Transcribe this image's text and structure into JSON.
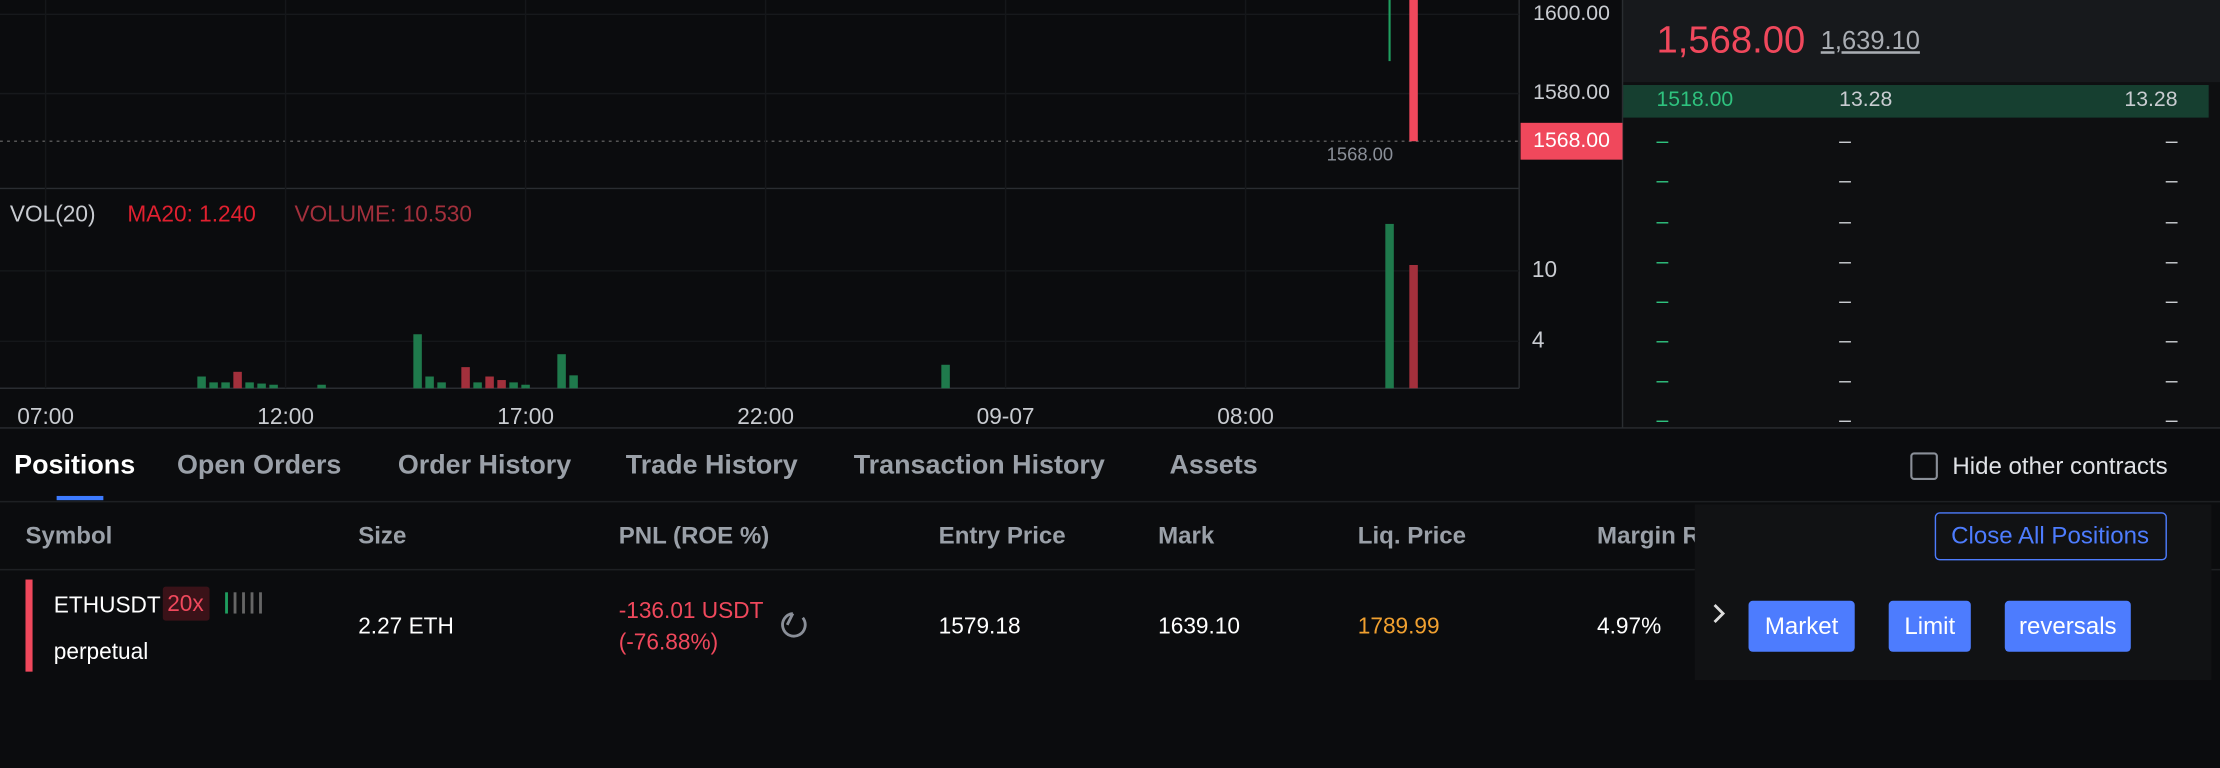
{
  "chart_data": [
    {
      "type": "candlestick",
      "x": [
        28,
        28.5
      ],
      "candles": [
        {
          "color": "#1f9e5f",
          "low": 1588.2
        },
        {
          "color": "#f0485c",
          "close": 1568
        }
      ],
      "xlim": [
        -0.95,
        30.7
      ],
      "ylim": [
        1556.1,
        1603.6
      ],
      "yticks": [
        {
          "value": 1580,
          "label": "1580.00"
        },
        {
          "value": 1600,
          "label": "1600.00"
        }
      ],
      "last_price": {
        "value": 1568,
        "label": "1568.00"
      },
      "low_marker": {
        "value": 1568,
        "label": "1568.00"
      }
    },
    {
      "type": "bar",
      "title": "VOL(20)",
      "annotations": [
        "MA20: 1.240",
        "VOLUME: 10.530"
      ],
      "series": [
        {
          "color": "#1f7a4c",
          "x": [
            3.25,
            3.5,
            3.75,
            4.25,
            4.5,
            4.75,
            5.75,
            7.75,
            8,
            8.25,
            9,
            9.75,
            10,
            10.75,
            11,
            18.75,
            28
          ],
          "values": [
            1.0,
            0.5,
            0.5,
            0.5,
            0.4,
            0.3,
            0.3,
            4.6,
            1.0,
            0.5,
            0.5,
            0.5,
            0.3,
            2.9,
            1.1,
            2.0,
            14
          ]
        },
        {
          "color": "#a3303c",
          "x": [
            4,
            8.75,
            9.25,
            9.5,
            28.5
          ],
          "values": [
            1.4,
            1.8,
            1.0,
            0.7,
            10.5
          ]
        }
      ],
      "xlim": [
        -0.95,
        30.7
      ],
      "xticks": [
        {
          "value": 0,
          "label": "07:00"
        },
        {
          "value": 5,
          "label": "12:00"
        },
        {
          "value": 10,
          "label": "17:00"
        },
        {
          "value": 15,
          "label": "22:00"
        },
        {
          "value": 20,
          "label": "09-07"
        },
        {
          "value": 25,
          "label": "08:00"
        }
      ],
      "ylim": [
        0,
        16.9
      ],
      "yticks": [
        4,
        10
      ]
    }
  ],
  "order_book": {
    "last_price": "1,568.00",
    "mark_price": "1,639.10",
    "rows": [
      [
        "1518.00",
        "13.28",
        "13.28"
      ],
      [
        "–",
        "–",
        "–"
      ],
      [
        "–",
        "–",
        "–"
      ],
      [
        "–",
        "–",
        "–"
      ],
      [
        "–",
        "–",
        "–"
      ],
      [
        "–",
        "–",
        "–"
      ],
      [
        "–",
        "–",
        "–"
      ],
      [
        "–",
        "–",
        "–"
      ],
      [
        "–",
        "–",
        "–"
      ]
    ]
  },
  "tabs": [
    "Positions",
    "Open Orders",
    "Order History",
    "Trade History",
    "Transaction History",
    "Assets"
  ],
  "hide_other": "Hide other contracts",
  "close_all": "Close All Positions",
  "table": {
    "headers": [
      "Symbol",
      "Size",
      "PNL (ROE %)",
      "Entry Price",
      "Mark",
      "Liq. Price",
      "Margin Ratio"
    ],
    "row": {
      "symbol": "ETHUSDT",
      "leverage": "20x",
      "kind": "perpetual",
      "size": "2.27 ETH",
      "pnl": "-136.01 USDT",
      "roe": "(-76.88%)",
      "entry": "1579.18",
      "mark": "1639.10",
      "liq": "1789.99",
      "margin": "4.97%"
    },
    "actions": [
      "Market",
      "Limit",
      "reversals"
    ]
  }
}
